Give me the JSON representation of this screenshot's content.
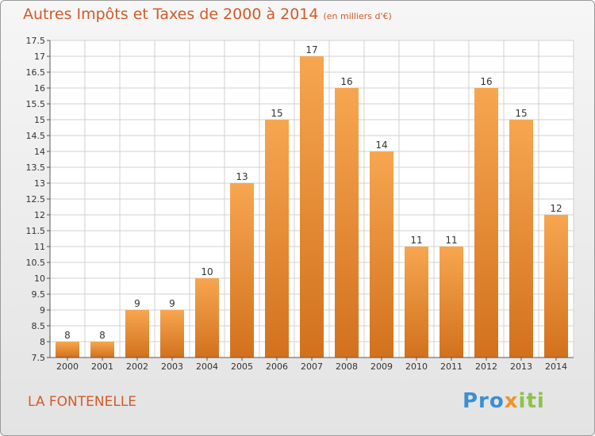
{
  "title": "Autres Impôts et Taxes de 2000 à 2014",
  "subtitle": "(en milliers d'€)",
  "commune": "LA FONTENELLE",
  "logo": {
    "p1": "Pro",
    "p2": "x",
    "p3": "iti"
  },
  "colors": {
    "bar_top": "#f7a650",
    "bar_bottom": "#d2711d",
    "accent": "#d35a28"
  },
  "chart_data": {
    "type": "bar",
    "title": "Autres Impôts et Taxes de 2000 à 2014",
    "xlabel": "",
    "ylabel": "",
    "categories": [
      "2000",
      "2001",
      "2002",
      "2003",
      "2004",
      "2005",
      "2006",
      "2007",
      "2008",
      "2009",
      "2010",
      "2011",
      "2012",
      "2013",
      "2014"
    ],
    "values": [
      8,
      8,
      9,
      9,
      10,
      13,
      15,
      17,
      16,
      14,
      11,
      11,
      16,
      15,
      12
    ],
    "ylim": [
      7.5,
      17.5
    ],
    "yticks": [
      7.5,
      8,
      8.5,
      9,
      9.5,
      10,
      10.5,
      11,
      11.5,
      12,
      12.5,
      13,
      13.5,
      14,
      14.5,
      15,
      15.5,
      16,
      16.5,
      17,
      17.5
    ],
    "grid": true,
    "legend": "none"
  }
}
